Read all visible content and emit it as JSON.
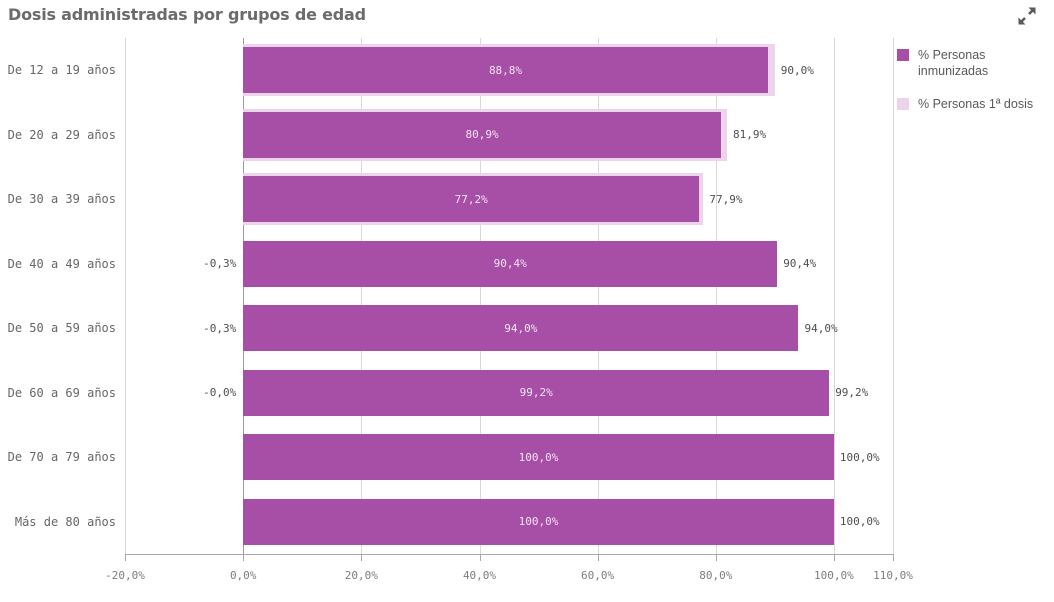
{
  "header": {
    "title": "Dosis administradas por grupos de edad"
  },
  "icons": {
    "expand": "fullscreen-expand-arrows"
  },
  "colors": {
    "inmunizadas_bar": "#a74fa7",
    "primera_dosis_bar": "#ecd5eb",
    "inside_label": "#f2e4f1",
    "outside_label": "#4f4f4f",
    "title_text": "#6b6b6b",
    "axis_text": "#7d7d7d",
    "category_text": "#666666",
    "gridline": "#d8d8d8",
    "axis_line": "#a8a8a8"
  },
  "legend": {
    "items": [
      {
        "label": "% Personas inmunizadas",
        "color": "#a74fa7"
      },
      {
        "label": "% Personas 1ª dosis",
        "color": "#ecd5eb"
      }
    ]
  },
  "chart_data": {
    "type": "bar",
    "orientation": "horizontal",
    "title": "Dosis administradas por grupos de edad",
    "categories": [
      "De 12 a 19 años",
      "De 20 a 29 años",
      "De 30 a 39 años",
      "De 40 a 49 años",
      "De 50 a 59 años",
      "De 60 a 69 años",
      "De 70 a 79 años",
      "Más de 80 años"
    ],
    "series": [
      {
        "name": "% Personas inmunizadas",
        "values": [
          88.8,
          80.9,
          77.2,
          90.4,
          94.0,
          99.2,
          100.0,
          100.0
        ],
        "labels": [
          "88,8%",
          "80,9%",
          "77,2%",
          "90,4%",
          "94,0%",
          "99,2%",
          "100,0%",
          "100,0%"
        ]
      },
      {
        "name": "% Personas 1ª dosis",
        "values": [
          90.0,
          81.9,
          77.9,
          90.4,
          94.0,
          99.2,
          100.0,
          100.0
        ],
        "labels": [
          "90,0%",
          "81,9%",
          "77,9%",
          "90,4%",
          "94,0%",
          "99,2%",
          "100,0%",
          "100,0%"
        ]
      }
    ],
    "negative_labels": [
      "",
      "",
      "",
      "-0,3%",
      "-0,3%",
      "-0,0%",
      "",
      ""
    ],
    "xlim": [
      -20,
      110
    ],
    "x_ticks": [
      -20,
      0,
      20,
      40,
      60,
      80,
      100,
      110
    ],
    "x_tick_labels": [
      "-20,0%",
      "0,0%",
      "20,0%",
      "40,0%",
      "60,0%",
      "80,0%",
      "100,0%",
      "110,0%"
    ],
    "grid": true,
    "legend_position": "right"
  }
}
